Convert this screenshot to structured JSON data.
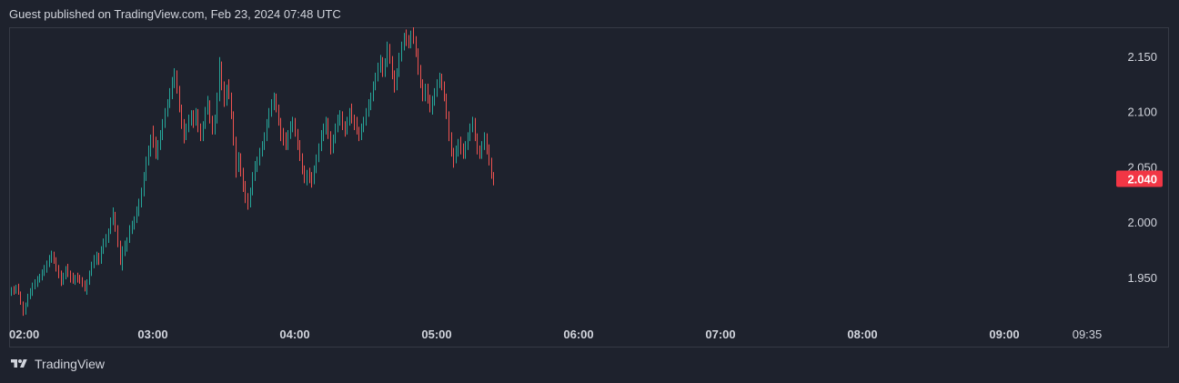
{
  "header": {
    "text": "Guest published on TradingView.com, Feb 23, 2024 07:48 UTC"
  },
  "footer": {
    "brand": "TradingView",
    "logo_icon": "tradingview-logo-icon"
  },
  "colors": {
    "background": "#1e222d",
    "up": "#26a69a",
    "down": "#ef5350",
    "text": "#d1d4dc",
    "last_price_bg": "#f23645"
  },
  "chart_data": {
    "type": "candlestick",
    "title": "",
    "xlabel": "",
    "ylabel": "",
    "ylim": [
      1.912,
      2.177
    ],
    "y_ticks": [
      "2.150",
      "2.100",
      "2.050",
      "2.000",
      "1.950"
    ],
    "y_tick_values": [
      2.15,
      2.1,
      2.05,
      2.0,
      1.95
    ],
    "x_ticks": [
      "02:00",
      "03:00",
      "04:00",
      "05:00",
      "06:00",
      "07:00",
      "08:00",
      "09:00",
      "09:35"
    ],
    "x_tick_minutes": [
      0,
      60,
      120,
      180,
      240,
      300,
      360,
      420,
      455
    ],
    "last_price": "2.040",
    "last_price_value": 2.04,
    "grid": false,
    "legend": "none",
    "interval_minutes": 1,
    "candles_ohlc": [
      [
        1.938,
        1.942,
        1.934,
        1.94
      ],
      [
        1.94,
        1.943,
        1.935,
        1.939
      ],
      [
        1.939,
        1.944,
        1.936,
        1.941
      ],
      [
        1.941,
        1.945,
        1.935,
        1.937
      ],
      [
        1.937,
        1.938,
        1.926,
        1.928
      ],
      [
        1.928,
        1.929,
        1.916,
        1.919
      ],
      [
        1.919,
        1.928,
        1.917,
        1.926
      ],
      [
        1.926,
        1.936,
        1.924,
        1.934
      ],
      [
        1.934,
        1.941,
        1.931,
        1.938
      ],
      [
        1.938,
        1.946,
        1.934,
        1.944
      ],
      [
        1.944,
        1.949,
        1.94,
        1.946
      ],
      [
        1.946,
        1.952,
        1.942,
        1.949
      ],
      [
        1.949,
        1.954,
        1.946,
        1.951
      ],
      [
        1.951,
        1.958,
        1.948,
        1.955
      ],
      [
        1.955,
        1.962,
        1.952,
        1.959
      ],
      [
        1.959,
        1.966,
        1.955,
        1.963
      ],
      [
        1.963,
        1.971,
        1.96,
        1.968
      ],
      [
        1.968,
        1.975,
        1.964,
        1.971
      ],
      [
        1.971,
        1.974,
        1.963,
        1.966
      ],
      [
        1.966,
        1.969,
        1.956,
        1.958
      ],
      [
        1.958,
        1.962,
        1.95,
        1.953
      ],
      [
        1.953,
        1.957,
        1.943,
        1.947
      ],
      [
        1.947,
        1.955,
        1.944,
        1.952
      ],
      [
        1.952,
        1.961,
        1.949,
        1.957
      ],
      [
        1.957,
        1.963,
        1.951,
        1.954
      ],
      [
        1.954,
        1.957,
        1.946,
        1.95
      ],
      [
        1.95,
        1.955,
        1.945,
        1.948
      ],
      [
        1.948,
        1.953,
        1.944,
        1.951
      ],
      [
        1.951,
        1.955,
        1.946,
        1.949
      ],
      [
        1.949,
        1.953,
        1.945,
        1.947
      ],
      [
        1.947,
        1.951,
        1.942,
        1.945
      ],
      [
        1.945,
        1.948,
        1.938,
        1.941
      ],
      [
        1.941,
        1.949,
        1.935,
        1.947
      ],
      [
        1.947,
        1.957,
        1.944,
        1.955
      ],
      [
        1.955,
        1.965,
        1.952,
        1.962
      ],
      [
        1.962,
        1.971,
        1.959,
        1.967
      ],
      [
        1.967,
        1.974,
        1.962,
        1.97
      ],
      [
        1.97,
        1.973,
        1.962,
        1.965
      ],
      [
        1.965,
        1.979,
        1.963,
        1.976
      ],
      [
        1.976,
        1.986,
        1.972,
        1.983
      ],
      [
        1.983,
        1.99,
        1.978,
        1.985
      ],
      [
        1.985,
        1.995,
        1.982,
        1.992
      ],
      [
        1.992,
        2.005,
        1.99,
        2.002
      ],
      [
        2.002,
        2.014,
        1.998,
        2.008
      ],
      [
        2.008,
        2.01,
        1.992,
        1.996
      ],
      [
        1.996,
        1.998,
        1.978,
        1.982
      ],
      [
        1.982,
        1.984,
        1.962,
        1.968
      ],
      [
        1.968,
        1.979,
        1.957,
        1.975
      ],
      [
        1.975,
        1.984,
        1.97,
        1.98
      ],
      [
        1.98,
        1.987,
        1.974,
        1.985
      ],
      [
        1.985,
        1.998,
        1.982,
        1.995
      ],
      [
        1.995,
        2.002,
        1.99,
        1.999
      ],
      [
        1.999,
        2.006,
        1.994,
        2.003
      ],
      [
        2.003,
        2.015,
        2.0,
        2.01
      ],
      [
        2.01,
        2.022,
        2.006,
        2.018
      ],
      [
        2.018,
        2.032,
        2.014,
        2.028
      ],
      [
        2.028,
        2.046,
        2.024,
        2.042
      ],
      [
        2.042,
        2.06,
        2.038,
        2.057
      ],
      [
        2.057,
        2.07,
        2.052,
        2.066
      ],
      [
        2.066,
        2.08,
        2.06,
        2.076
      ],
      [
        2.076,
        2.088,
        2.068,
        2.072
      ],
      [
        2.072,
        2.078,
        2.058,
        2.062
      ],
      [
        2.062,
        2.075,
        2.057,
        2.07
      ],
      [
        2.07,
        2.084,
        2.066,
        2.08
      ],
      [
        2.08,
        2.094,
        2.075,
        2.09
      ],
      [
        2.09,
        2.104,
        2.086,
        2.1
      ],
      [
        2.1,
        2.112,
        2.096,
        2.108
      ],
      [
        2.108,
        2.122,
        2.104,
        2.117
      ],
      [
        2.117,
        2.132,
        2.112,
        2.128
      ],
      [
        2.128,
        2.14,
        2.122,
        2.134
      ],
      [
        2.134,
        2.138,
        2.117,
        2.12
      ],
      [
        2.12,
        2.124,
        2.1,
        2.104
      ],
      [
        2.104,
        2.107,
        2.085,
        2.09
      ],
      [
        2.09,
        2.094,
        2.072,
        2.078
      ],
      [
        2.078,
        2.09,
        2.075,
        2.086
      ],
      [
        2.086,
        2.098,
        2.082,
        2.095
      ],
      [
        2.095,
        2.102,
        2.088,
        2.098
      ],
      [
        2.098,
        2.102,
        2.086,
        2.092
      ],
      [
        2.092,
        2.104,
        2.088,
        2.1
      ],
      [
        2.1,
        2.103,
        2.082,
        2.086
      ],
      [
        2.086,
        2.09,
        2.074,
        2.078
      ],
      [
        2.078,
        2.092,
        2.074,
        2.088
      ],
      [
        2.088,
        2.105,
        2.085,
        2.102
      ],
      [
        2.102,
        2.115,
        2.098,
        2.108
      ],
      [
        2.108,
        2.111,
        2.09,
        2.094
      ],
      [
        2.094,
        2.097,
        2.08,
        2.084
      ],
      [
        2.084,
        2.098,
        2.08,
        2.094
      ],
      [
        2.094,
        2.118,
        2.09,
        2.114
      ],
      [
        2.114,
        2.15,
        2.11,
        2.142
      ],
      [
        2.142,
        2.146,
        2.12,
        2.124
      ],
      [
        2.124,
        2.128,
        2.105,
        2.11
      ],
      [
        2.11,
        2.125,
        2.106,
        2.12
      ],
      [
        2.12,
        2.13,
        2.112,
        2.116
      ],
      [
        2.116,
        2.118,
        2.094,
        2.098
      ],
      [
        2.098,
        2.101,
        2.07,
        2.075
      ],
      [
        2.075,
        2.078,
        2.041,
        2.05
      ],
      [
        2.05,
        2.064,
        2.046,
        2.06
      ],
      [
        2.06,
        2.063,
        2.042,
        2.047
      ],
      [
        2.047,
        2.05,
        2.028,
        2.034
      ],
      [
        2.034,
        2.038,
        2.018,
        2.024
      ],
      [
        2.024,
        2.027,
        2.012,
        2.016
      ],
      [
        2.016,
        2.032,
        2.014,
        2.028
      ],
      [
        2.028,
        2.046,
        2.025,
        2.042
      ],
      [
        2.042,
        2.056,
        2.038,
        2.052
      ],
      [
        2.052,
        2.06,
        2.046,
        2.056
      ],
      [
        2.056,
        2.068,
        2.052,
        2.064
      ],
      [
        2.064,
        2.074,
        2.06,
        2.07
      ],
      [
        2.07,
        2.082,
        2.066,
        2.078
      ],
      [
        2.078,
        2.094,
        2.074,
        2.09
      ],
      [
        2.09,
        2.104,
        2.086,
        2.1
      ],
      [
        2.1,
        2.112,
        2.096,
        2.108
      ],
      [
        2.108,
        2.118,
        2.102,
        2.114
      ],
      [
        2.114,
        2.117,
        2.1,
        2.104
      ],
      [
        2.104,
        2.107,
        2.088,
        2.092
      ],
      [
        2.092,
        2.095,
        2.074,
        2.08
      ],
      [
        2.08,
        2.086,
        2.07,
        2.078
      ],
      [
        2.078,
        2.082,
        2.066,
        2.07
      ],
      [
        2.07,
        2.084,
        2.066,
        2.08
      ],
      [
        2.08,
        2.092,
        2.076,
        2.088
      ],
      [
        2.088,
        2.096,
        2.082,
        2.092
      ],
      [
        2.092,
        2.095,
        2.078,
        2.082
      ],
      [
        2.082,
        2.085,
        2.066,
        2.072
      ],
      [
        2.072,
        2.075,
        2.056,
        2.06
      ],
      [
        2.06,
        2.063,
        2.044,
        2.048
      ],
      [
        2.048,
        2.052,
        2.036,
        2.04
      ],
      [
        2.04,
        2.048,
        2.034,
        2.044
      ],
      [
        2.044,
        2.05,
        2.036,
        2.04
      ],
      [
        2.04,
        2.046,
        2.032,
        2.038
      ],
      [
        2.038,
        2.052,
        2.035,
        2.048
      ],
      [
        2.048,
        2.062,
        2.045,
        2.058
      ],
      [
        2.058,
        2.072,
        2.055,
        2.068
      ],
      [
        2.068,
        2.084,
        2.065,
        2.08
      ],
      [
        2.08,
        2.09,
        2.074,
        2.086
      ],
      [
        2.086,
        2.096,
        2.08,
        2.092
      ],
      [
        2.092,
        2.095,
        2.076,
        2.08
      ],
      [
        2.08,
        2.083,
        2.062,
        2.066
      ],
      [
        2.066,
        2.08,
        2.063,
        2.076
      ],
      [
        2.076,
        2.09,
        2.072,
        2.086
      ],
      [
        2.086,
        2.098,
        2.082,
        2.094
      ],
      [
        2.094,
        2.102,
        2.088,
        2.098
      ],
      [
        2.098,
        2.101,
        2.084,
        2.088
      ],
      [
        2.088,
        2.092,
        2.078,
        2.084
      ],
      [
        2.084,
        2.096,
        2.08,
        2.092
      ],
      [
        2.092,
        2.104,
        2.088,
        2.1
      ],
      [
        2.1,
        2.108,
        2.09,
        2.094
      ],
      [
        2.094,
        2.098,
        2.084,
        2.09
      ],
      [
        2.09,
        2.096,
        2.08,
        2.084
      ],
      [
        2.084,
        2.087,
        2.074,
        2.078
      ],
      [
        2.078,
        2.09,
        2.075,
        2.086
      ],
      [
        2.086,
        2.096,
        2.082,
        2.092
      ],
      [
        2.092,
        2.104,
        2.088,
        2.1
      ],
      [
        2.1,
        2.112,
        2.096,
        2.108
      ],
      [
        2.108,
        2.118,
        2.102,
        2.114
      ],
      [
        2.114,
        2.128,
        2.11,
        2.124
      ],
      [
        2.124,
        2.136,
        2.12,
        2.132
      ],
      [
        2.132,
        2.145,
        2.128,
        2.141
      ],
      [
        2.141,
        2.152,
        2.136,
        2.147
      ],
      [
        2.147,
        2.15,
        2.132,
        2.136
      ],
      [
        2.136,
        2.149,
        2.132,
        2.145
      ],
      [
        2.145,
        2.164,
        2.141,
        2.16
      ],
      [
        2.16,
        2.162,
        2.144,
        2.148
      ],
      [
        2.148,
        2.151,
        2.13,
        2.134
      ],
      [
        2.134,
        2.138,
        2.118,
        2.124
      ],
      [
        2.124,
        2.14,
        2.12,
        2.136
      ],
      [
        2.136,
        2.154,
        2.132,
        2.15
      ],
      [
        2.15,
        2.164,
        2.146,
        2.16
      ],
      [
        2.16,
        2.172,
        2.156,
        2.168
      ],
      [
        2.168,
        2.175,
        2.16,
        2.166
      ],
      [
        2.166,
        2.17,
        2.158,
        2.162
      ],
      [
        2.162,
        2.174,
        2.158,
        2.17
      ],
      [
        2.17,
        2.177,
        2.162,
        2.166
      ],
      [
        2.166,
        2.169,
        2.15,
        2.154
      ],
      [
        2.154,
        2.158,
        2.134,
        2.14
      ],
      [
        2.14,
        2.143,
        2.122,
        2.126
      ],
      [
        2.126,
        2.13,
        2.11,
        2.114
      ],
      [
        2.114,
        2.126,
        2.11,
        2.122
      ],
      [
        2.122,
        2.126,
        2.108,
        2.112
      ],
      [
        2.112,
        2.116,
        2.1,
        2.104
      ],
      [
        2.104,
        2.115,
        2.098,
        2.11
      ],
      [
        2.11,
        2.122,
        2.106,
        2.118
      ],
      [
        2.118,
        2.13,
        2.114,
        2.126
      ],
      [
        2.126,
        2.136,
        2.122,
        2.132
      ],
      [
        2.132,
        2.135,
        2.12,
        2.124
      ],
      [
        2.124,
        2.128,
        2.11,
        2.114
      ],
      [
        2.114,
        2.117,
        2.094,
        2.098
      ],
      [
        2.098,
        2.101,
        2.074,
        2.078
      ],
      [
        2.078,
        2.082,
        2.06,
        2.064
      ],
      [
        2.064,
        2.068,
        2.05,
        2.058
      ],
      [
        2.058,
        2.07,
        2.054,
        2.066
      ],
      [
        2.066,
        2.076,
        2.06,
        2.072
      ],
      [
        2.072,
        2.078,
        2.062,
        2.066
      ],
      [
        2.066,
        2.072,
        2.058,
        2.062
      ],
      [
        2.062,
        2.074,
        2.058,
        2.07
      ],
      [
        2.07,
        2.082,
        2.066,
        2.078
      ],
      [
        2.078,
        2.09,
        2.074,
        2.086
      ],
      [
        2.086,
        2.096,
        2.082,
        2.092
      ],
      [
        2.092,
        2.095,
        2.074,
        2.078
      ],
      [
        2.078,
        2.081,
        2.062,
        2.066
      ],
      [
        2.066,
        2.07,
        2.058,
        2.062
      ],
      [
        2.062,
        2.074,
        2.058,
        2.07
      ],
      [
        2.07,
        2.082,
        2.066,
        2.078
      ],
      [
        2.078,
        2.081,
        2.062,
        2.068
      ],
      [
        2.068,
        2.071,
        2.052,
        2.056
      ],
      [
        2.056,
        2.059,
        2.04,
        2.043
      ],
      [
        2.043,
        2.046,
        2.034,
        2.04
      ]
    ]
  }
}
